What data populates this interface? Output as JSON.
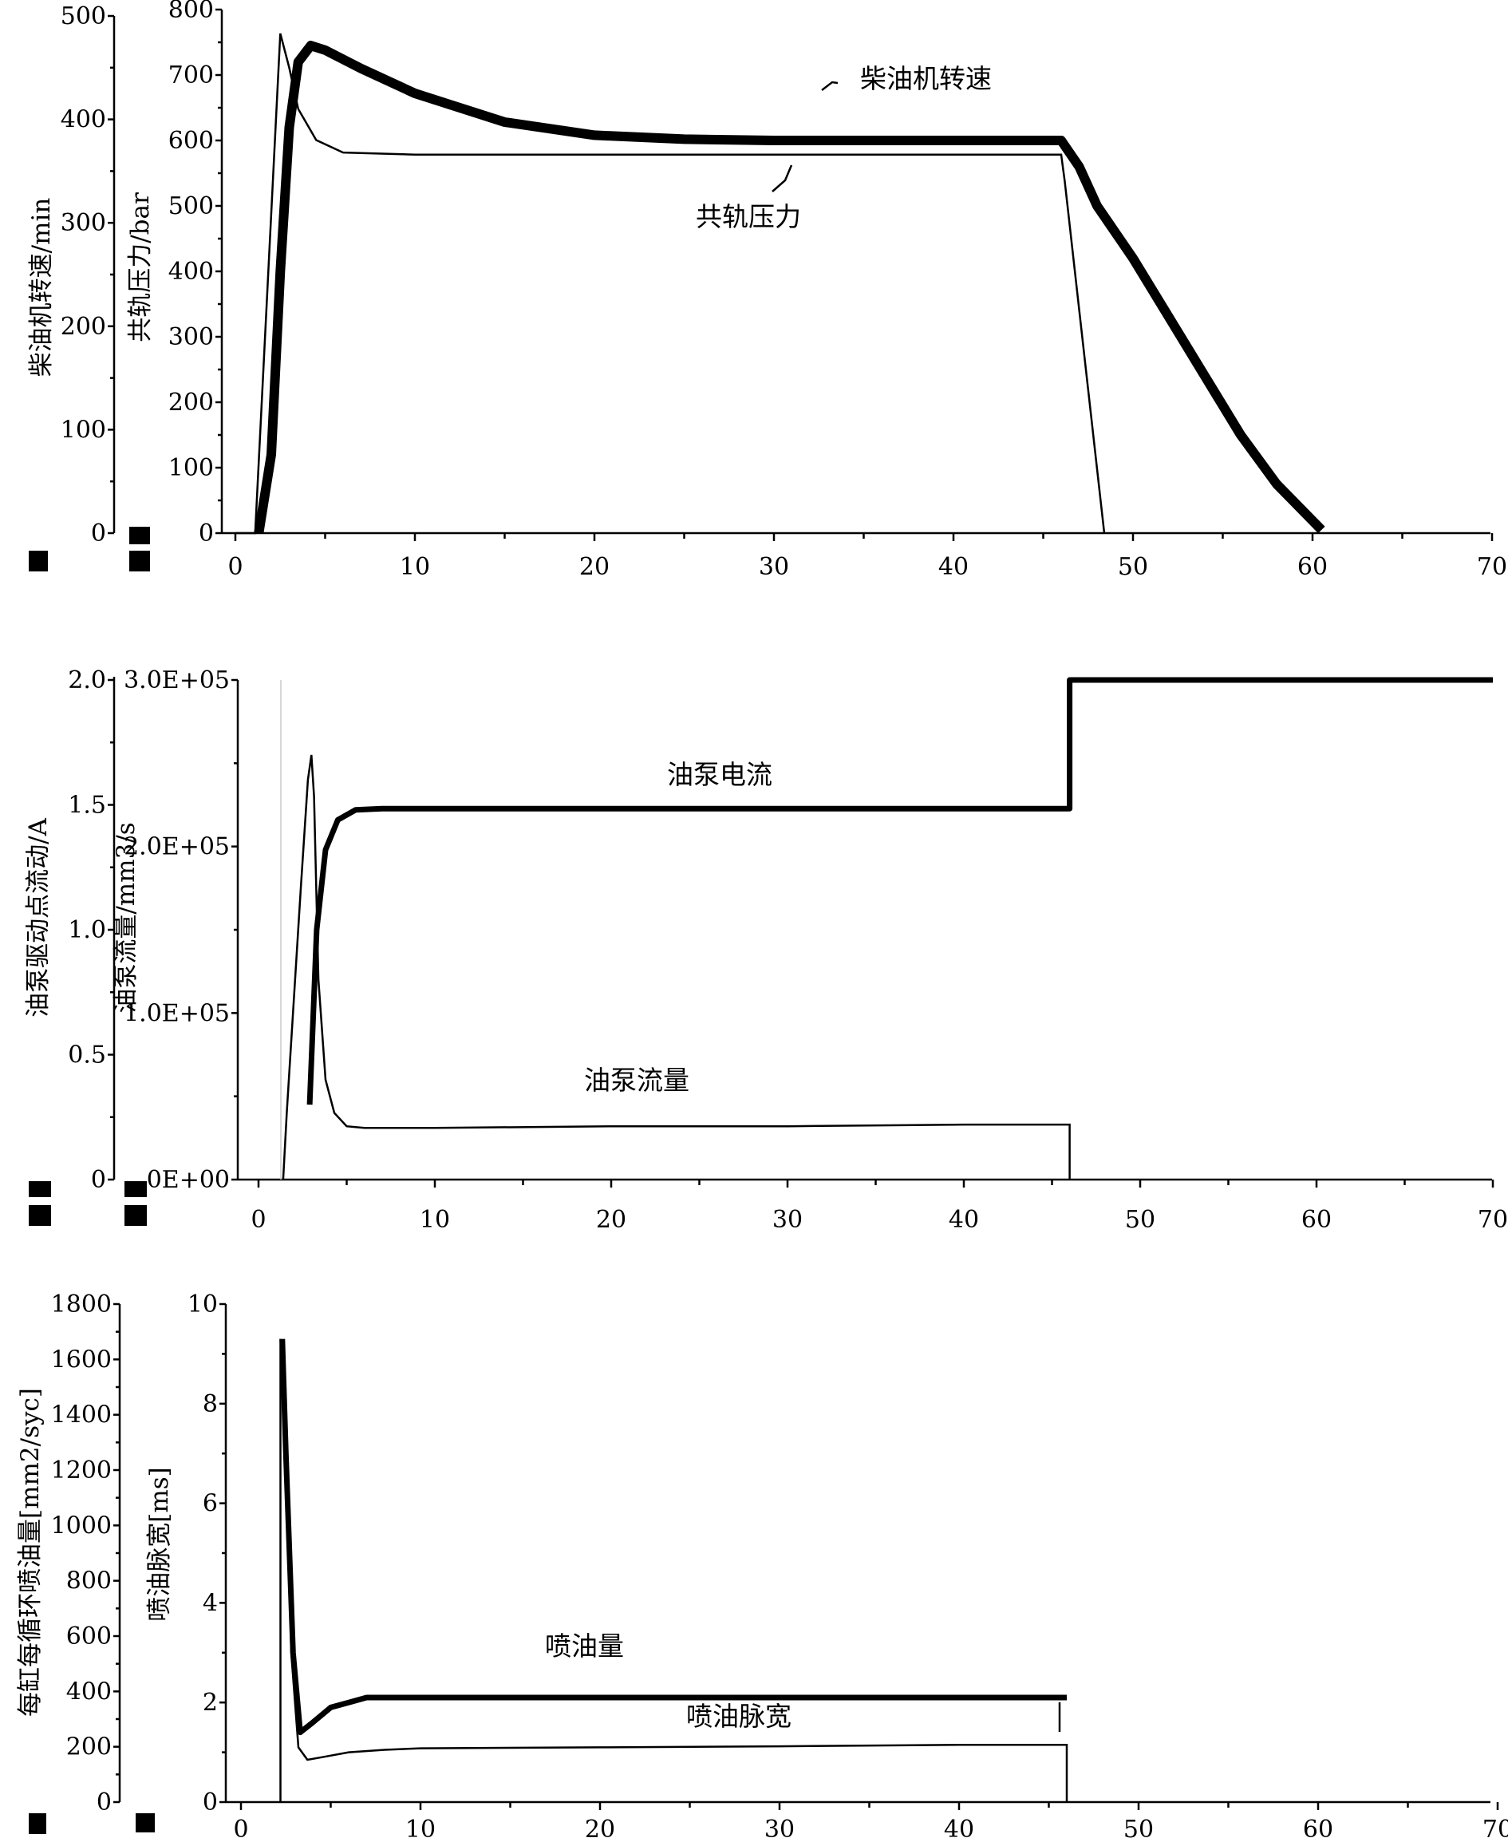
{
  "chart_data": [
    {
      "type": "line",
      "xlim": [
        0,
        70
      ],
      "xticks": [
        "0",
        "10",
        "20",
        "30",
        "40",
        "50",
        "60",
        "70"
      ],
      "axes": [
        {
          "label": "柴油机转速/min",
          "lim": [
            0,
            500
          ],
          "ticks": [
            "0",
            "100",
            "200",
            "300",
            "400",
            "500"
          ]
        },
        {
          "label": "共轨压力/bar",
          "lim": [
            0,
            800
          ],
          "ticks": [
            "0",
            "100",
            "200",
            "300",
            "400",
            "500",
            "600",
            "700",
            "800"
          ]
        }
      ],
      "series": [
        {
          "name": "柴油机转速",
          "axis": 0,
          "style": "thin",
          "x": [
            0,
            1.1,
            2.5,
            3.0,
            3.5,
            4.5,
            6,
            10,
            20,
            30,
            40,
            46,
            46.2,
            48.4
          ],
          "y": [
            0,
            0,
            483,
            450,
            410,
            380,
            368,
            366,
            366,
            366,
            366,
            366,
            340,
            0
          ]
        },
        {
          "name": "共轨压力",
          "axis": 1,
          "style": "thick",
          "x": [
            1.3,
            2.0,
            2.5,
            3.0,
            3.5,
            4.2,
            5,
            7,
            10,
            15,
            20,
            25,
            30,
            35,
            40,
            45,
            46,
            47,
            48,
            50,
            52,
            54,
            56,
            58,
            60.5
          ],
          "y": [
            0,
            120,
            400,
            620,
            720,
            745,
            738,
            710,
            672,
            628,
            608,
            602,
            600,
            600,
            600,
            600,
            600,
            560,
            500,
            420,
            330,
            240,
            150,
            75,
            5
          ]
        }
      ],
      "annotations": [
        "柴油机转速",
        "共轨压力"
      ]
    },
    {
      "type": "line",
      "xlim": [
        0,
        70
      ],
      "xticks": [
        "0",
        "10",
        "20",
        "30",
        "40",
        "50",
        "60",
        "70"
      ],
      "axes": [
        {
          "label": "油泵驱动点流动/A",
          "lim": [
            0,
            2.0
          ],
          "ticks": [
            "0",
            "0.5",
            "1.0",
            "1.5",
            "2.0"
          ]
        },
        {
          "label": "油泵流量/mm3/s",
          "lim": [
            0,
            300000
          ],
          "ticks": [
            "0E+00",
            "1.0E+05",
            "2.0E+05",
            "3.0E+05"
          ]
        }
      ],
      "series": [
        {
          "name": "油泵电流",
          "axis": 0,
          "style": "thick",
          "x": [
            2.9,
            3.3,
            3.8,
            4.5,
            5.5,
            7,
            10,
            20,
            30,
            40,
            46,
            46,
            70
          ],
          "y": [
            0.3,
            1.0,
            1.32,
            1.44,
            1.48,
            1.485,
            1.485,
            1.485,
            1.485,
            1.485,
            1.485,
            2.0,
            2.0
          ]
        },
        {
          "name": "油泵流量",
          "axis": 1,
          "style": "thin",
          "x": [
            1.4,
            1.6,
            2.4,
            2.8,
            3.0,
            3.15,
            3.4,
            3.8,
            4.3,
            5.0,
            6,
            10,
            20,
            30,
            40,
            46,
            46
          ],
          "y": [
            0,
            40000,
            175000,
            240000,
            255000,
            230000,
            120000,
            60000,
            40000,
            32000,
            31000,
            31000,
            32000,
            32000,
            33000,
            33000,
            0
          ]
        }
      ],
      "annotations": [
        "油泵电流",
        "油泵流量"
      ]
    },
    {
      "type": "line",
      "xlim": [
        0,
        70
      ],
      "xticks": [
        "0",
        "10",
        "20",
        "30",
        "40",
        "50",
        "60",
        "70"
      ],
      "axes": [
        {
          "label": "每缸每循环喷油量[mm2/syc]",
          "lim": [
            0,
            1800
          ],
          "ticks": [
            "0",
            "200",
            "400",
            "600",
            "800",
            "1000",
            "1200",
            "1400",
            "1600",
            "1800"
          ]
        },
        {
          "label": "喷油脉宽[ms]",
          "lim": [
            0,
            10
          ],
          "ticks": [
            "0",
            "2",
            "4",
            "6",
            "8",
            "10"
          ]
        }
      ],
      "series": [
        {
          "name": "喷油量",
          "axis": 1,
          "style": "thick",
          "x": [
            2.3,
            2.5,
            2.9,
            3.3,
            4.0,
            5.0,
            6.0,
            7.0,
            10,
            20,
            30,
            40,
            46
          ],
          "y": [
            9.3,
            7.0,
            3.0,
            1.4,
            1.6,
            1.9,
            2.0,
            2.1,
            2.1,
            2.1,
            2.1,
            2.1,
            2.1
          ]
        },
        {
          "name": "喷油脉宽",
          "axis": 1,
          "style": "thin",
          "x": [
            2.2,
            2.2,
            2.5,
            2.8,
            3.2,
            3.7,
            4.5,
            6.0,
            8.0,
            10,
            20,
            30,
            40,
            46,
            46
          ],
          "y": [
            0,
            9.3,
            7.5,
            3.0,
            1.1,
            0.85,
            0.9,
            1.0,
            1.05,
            1.08,
            1.1,
            1.12,
            1.15,
            1.15,
            0
          ]
        }
      ],
      "annotations": [
        "喷油量",
        "喷油脉宽"
      ]
    }
  ]
}
